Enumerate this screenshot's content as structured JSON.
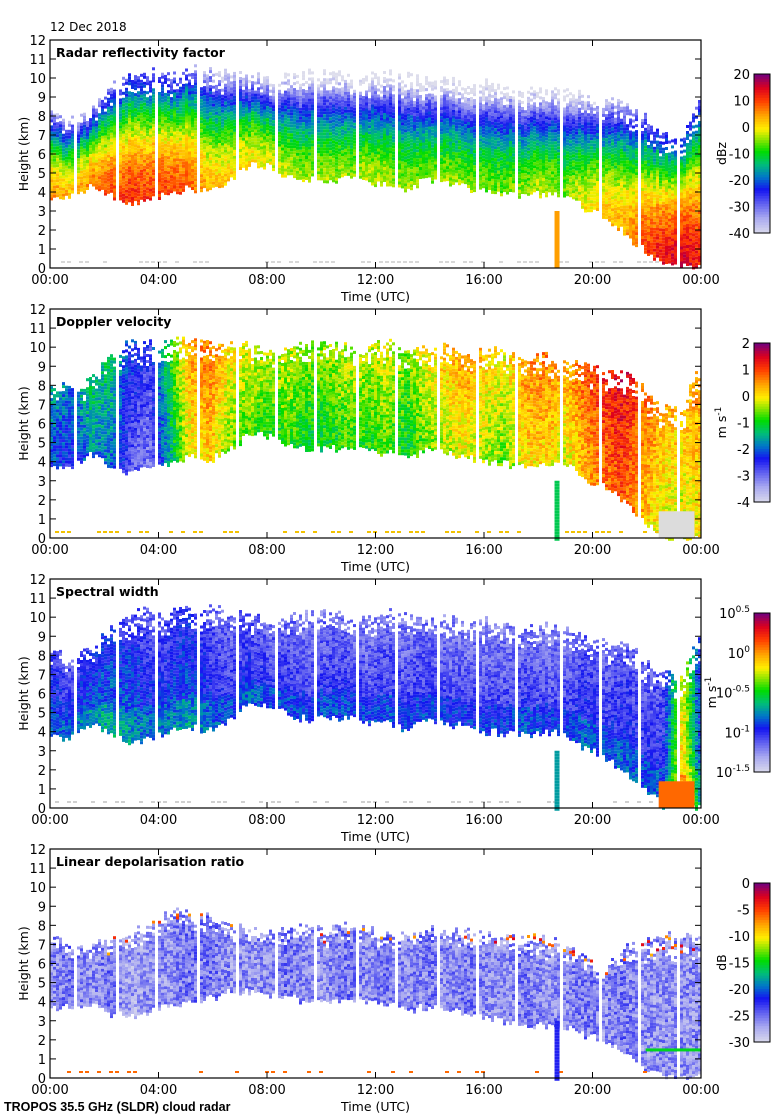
{
  "header": {
    "date": "12 Dec 2018"
  },
  "footer": {
    "instrument": "TROPOS 35.5 GHz (SLDR) cloud radar"
  },
  "chart_data": [
    {
      "type": "heatmap",
      "title": "Radar reflectivity factor",
      "xlabel": "Time (UTC)",
      "ylabel": "Height (km)",
      "x_ticks": [
        "00:00",
        "04:00",
        "08:00",
        "12:00",
        "16:00",
        "20:00",
        "00:00"
      ],
      "y_ticks": [
        "0",
        "1",
        "2",
        "3",
        "4",
        "5",
        "6",
        "7",
        "8",
        "9",
        "10",
        "11",
        "12"
      ],
      "xlim_hours": [
        0,
        24
      ],
      "ylim_km": [
        0,
        12
      ],
      "colorbar": {
        "label": "dBz",
        "min": -40,
        "max": 20,
        "ticks": [
          "20",
          "10",
          "0",
          "-10",
          "-20",
          "-30",
          "-40"
        ]
      },
      "cloud_top_km": [
        8.2,
        7.8,
        8.2,
        9.5,
        10.2,
        10.3,
        10.2,
        10.4,
        10.5,
        10.3,
        10.1,
        9.9,
        10.0,
        10.2,
        10.3,
        10.1,
        10.0,
        10.2,
        10.1,
        9.8,
        10.0,
        9.6,
        9.8,
        9.7,
        9.4,
        9.5,
        9.3,
        9.2,
        8.6,
        8.8,
        8.0,
        7.0,
        6.8,
        9.5
      ],
      "cloud_base_km": [
        3.7,
        3.8,
        4.4,
        3.9,
        3.5,
        3.7,
        4.0,
        4.3,
        4.1,
        4.6,
        5.5,
        5.4,
        4.9,
        4.7,
        4.7,
        4.8,
        4.6,
        4.5,
        4.2,
        4.7,
        4.5,
        4.3,
        4.0,
        4.0,
        3.8,
        4.0,
        4.0,
        3.2,
        2.8,
        2.0,
        1.0,
        0.2,
        0.1,
        0.0
      ],
      "core_value": [
        -2,
        -5,
        -1,
        2,
        4,
        3,
        2,
        1,
        -5,
        -6,
        -7,
        -8,
        -10,
        -12,
        -11,
        -12,
        -10,
        -11,
        -12,
        -13,
        -12,
        -12,
        -13,
        -13,
        -12,
        -10,
        -13,
        -8,
        -5,
        -4,
        2,
        6,
        8,
        4
      ],
      "representative_values": {
        "min_dbz": -40,
        "max_dbz": 10
      }
    },
    {
      "type": "heatmap",
      "title": "Doppler velocity",
      "xlabel": "Time (UTC)",
      "ylabel": "Height (km)",
      "x_ticks": [
        "00:00",
        "04:00",
        "08:00",
        "12:00",
        "16:00",
        "20:00",
        "00:00"
      ],
      "y_ticks": [
        "0",
        "1",
        "2",
        "3",
        "4",
        "5",
        "6",
        "7",
        "8",
        "9",
        "10",
        "11",
        "12"
      ],
      "xlim_hours": [
        0,
        24
      ],
      "ylim_km": [
        0,
        12
      ],
      "colorbar": {
        "label": "m s-1",
        "label_main": "m s",
        "label_sup": "-1",
        "min": -4,
        "max": 2,
        "ticks": [
          "2",
          "1",
          "0",
          "-1",
          "-2",
          "-3",
          "-4"
        ]
      },
      "core_value": [
        -1.8,
        -2.2,
        -1.5,
        -1.6,
        -2.5,
        -2.8,
        -1.2,
        0.2,
        0.5,
        -0.2,
        -0.4,
        -0.6,
        -0.5,
        -0.8,
        -0.7,
        -0.5,
        -0.6,
        -0.4,
        -0.8,
        -0.3,
        0.0,
        0.2,
        -0.1,
        -0.3,
        0.3,
        0.4,
        0.1,
        0.6,
        1.0,
        1.2,
        0.6,
        0.1,
        0.0,
        0.3
      ]
    },
    {
      "type": "heatmap",
      "title": "Spectral width",
      "xlabel": "Time (UTC)",
      "ylabel": "Height (km)",
      "x_ticks": [
        "00:00",
        "04:00",
        "08:00",
        "12:00",
        "16:00",
        "20:00",
        "00:00"
      ],
      "y_ticks": [
        "0",
        "1",
        "2",
        "3",
        "4",
        "5",
        "6",
        "7",
        "8",
        "9",
        "10",
        "11",
        "12"
      ],
      "xlim_hours": [
        0,
        24
      ],
      "ylim_km": [
        0,
        12
      ],
      "colorbar": {
        "label": "m s-1",
        "label_main": "m s",
        "label_sup": "-1",
        "scale": "log10",
        "min_exp": -1.5,
        "max_exp": 0.5,
        "ticks": [
          {
            "base": "10",
            "exp": "0.5"
          },
          {
            "base": "10",
            "exp": "0"
          },
          {
            "base": "10",
            "exp": "-0.5"
          },
          {
            "base": "10",
            "exp": "-1"
          },
          {
            "base": "10",
            "exp": "-1.5"
          }
        ]
      },
      "core_value_log10": [
        -0.85,
        -0.9,
        -0.8,
        -0.75,
        -0.8,
        -0.9,
        -0.85,
        -0.8,
        -0.9,
        -0.95,
        -0.9,
        -0.95,
        -0.95,
        -1.0,
        -0.95,
        -0.95,
        -1.0,
        -0.95,
        -1.0,
        -0.95,
        -1.0,
        -1.0,
        -1.0,
        -1.0,
        -0.95,
        -1.0,
        -1.0,
        -0.9,
        -0.95,
        -0.9,
        -0.95,
        -0.9,
        0.0,
        -0.9
      ]
    },
    {
      "type": "heatmap",
      "title": "Linear depolarisation ratio",
      "xlabel": "Time (UTC)",
      "ylabel": "Height (km)",
      "x_ticks": [
        "00:00",
        "04:00",
        "08:00",
        "12:00",
        "16:00",
        "20:00",
        "00:00"
      ],
      "y_ticks": [
        "0",
        "1",
        "2",
        "3",
        "4",
        "5",
        "6",
        "7",
        "8",
        "9",
        "10",
        "11",
        "12"
      ],
      "xlim_hours": [
        0,
        24
      ],
      "ylim_km": [
        0,
        12
      ],
      "colorbar": {
        "label": "dB",
        "min": -30,
        "max": 0,
        "ticks": [
          "0",
          "-5",
          "-10",
          "-15",
          "-20",
          "-25",
          "-30"
        ]
      },
      "cloud_top_km": [
        7.4,
        7.0,
        7.0,
        7.2,
        7.5,
        8.0,
        8.6,
        8.7,
        8.5,
        8.0,
        7.8,
        7.6,
        7.9,
        7.8,
        7.7,
        8.0,
        7.9,
        7.5,
        7.6,
        7.8,
        7.6,
        7.7,
        7.7,
        7.5,
        7.4,
        7.2,
        7.0,
        6.4,
        5.6,
        6.8,
        7.2,
        7.4,
        7.5,
        7.6
      ],
      "cloud_base_km": [
        3.7,
        3.8,
        4.0,
        3.5,
        3.3,
        3.5,
        3.8,
        4.0,
        4.2,
        4.5,
        4.6,
        4.4,
        4.3,
        4.0,
        4.1,
        4.2,
        4.0,
        4.0,
        3.6,
        3.8,
        3.7,
        3.5,
        3.2,
        3.0,
        2.8,
        2.8,
        2.7,
        2.4,
        2.0,
        1.4,
        0.6,
        0.1,
        0.1,
        0.0
      ],
      "core_value": [
        -26,
        -25,
        -26,
        -25,
        -27,
        -26,
        -26,
        -25,
        -25,
        -26,
        -26,
        -26,
        -25,
        -26,
        -26,
        -25,
        -26,
        -25,
        -26,
        -25,
        -26,
        -25,
        -26,
        -26,
        -25,
        -26,
        -26,
        -25,
        -26,
        -25,
        -26,
        -26,
        -26,
        -26
      ],
      "melting_layer_km": 1.5
    }
  ]
}
